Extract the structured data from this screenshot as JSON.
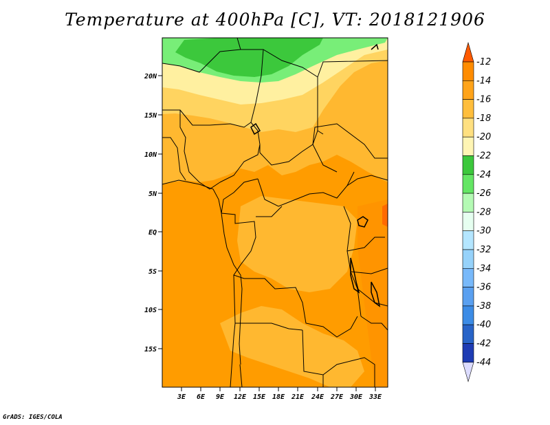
{
  "title": "Temperature at 400hPa [C], VT: 2018121906",
  "map": {
    "lat_labels": [
      "20N",
      "15N",
      "10N",
      "5N",
      "EQ",
      "5S",
      "10S",
      "15S"
    ],
    "lon_labels": [
      "3E",
      "6E",
      "9E",
      "12E",
      "15E",
      "18E",
      "21E",
      "24E",
      "27E",
      "30E",
      "33E"
    ]
  },
  "colorbar": {
    "labels": [
      "-12",
      "-14",
      "-16",
      "-18",
      "-20",
      "-22",
      "-24",
      "-26",
      "-28",
      "-30",
      "-32",
      "-34",
      "-36",
      "-38",
      "-40",
      "-42",
      "-44"
    ],
    "colors": [
      "#ff5a00",
      "#ff8c00",
      "#ffa41a",
      "#ffbe3c",
      "#ffe080",
      "#fff5b4",
      "#3cc83c",
      "#64e664",
      "#b4fab4",
      "#e6fff0",
      "#b4e6ff",
      "#96d2fa",
      "#78b9fa",
      "#5aa0f0",
      "#3c8ce6",
      "#2864c8",
      "#1e3cb4",
      "#141464",
      "#dcdcff"
    ]
  },
  "credit": "GrADS: IGES/COLA"
}
